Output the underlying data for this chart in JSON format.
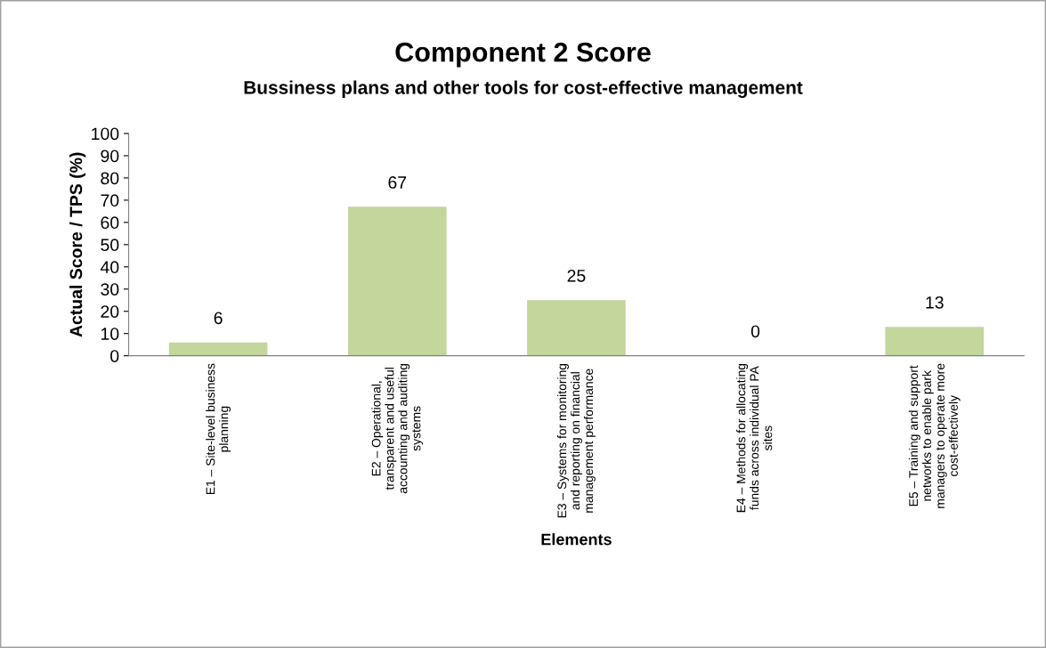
{
  "chart_data": {
    "type": "bar",
    "title": "Component 2 Score",
    "subtitle": "Bussiness plans and other tools for cost-effective management",
    "xlabel": "Elements",
    "ylabel": "Actual Score / TPS (%)",
    "categories": [
      "E1 – Site-level business\nplanning",
      "E2 – Operational,\ntransparent and useful\naccounting and auditing\nsystems",
      "E3 – Systems for monitoring\nand reporting on financial\nmanagement performance",
      "E4 – Methods for allocating\nfunds across individual PA\nsites",
      "E5 – Training and support\nnetworks to enable park\nmanagers to operate more\ncost-effectively"
    ],
    "values": [
      6,
      67,
      25,
      0,
      13
    ],
    "color": "#c3d69b",
    "ylim": [
      0,
      100
    ],
    "yticks": [
      0,
      10,
      20,
      30,
      40,
      50,
      60,
      70,
      80,
      90,
      100
    ],
    "data_labels": true,
    "grid": false,
    "legend": false
  }
}
